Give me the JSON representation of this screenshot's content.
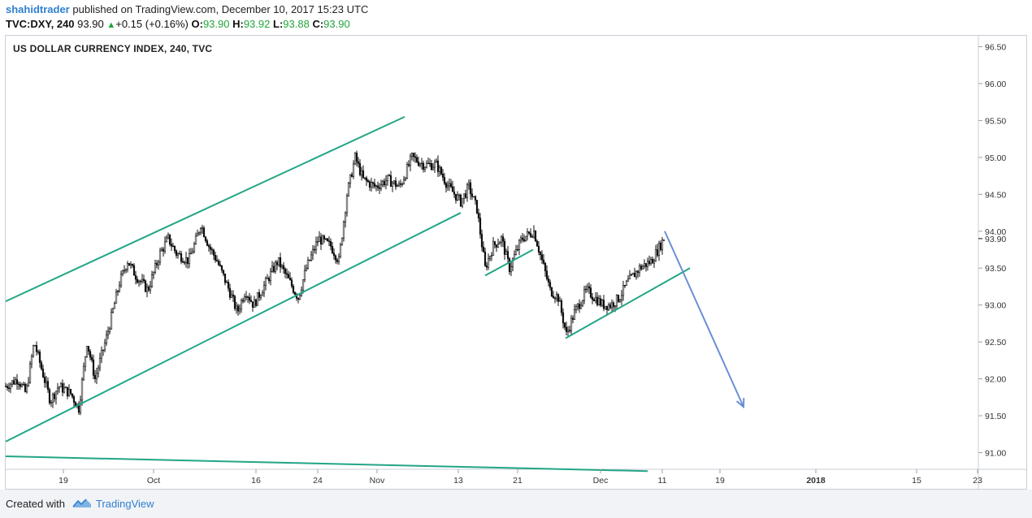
{
  "header": {
    "author": "shahidtrader",
    "published_text": "published on TradingView.com, December 10, 2017 15:23 UTC",
    "symbol": "TVC:DXY, 240",
    "last": "93.90",
    "change": "+0.15 (+0.16%)",
    "open_label": "O:",
    "open": "93.90",
    "high_label": "H:",
    "high": "93.92",
    "low_label": "L:",
    "low": "93.88",
    "close_label": "C:",
    "close": "93.90"
  },
  "chart_data": {
    "type": "candlestick",
    "title": "US DOLLAR CURRENCY INDEX, 240, TVC",
    "y_ticks": [
      "96.50",
      "96.00",
      "95.50",
      "95.00",
      "94.50",
      "94.00",
      "93.50",
      "93.00",
      "92.50",
      "92.00",
      "91.50",
      "91.00"
    ],
    "last_price_label": "93.90",
    "x_ticks": [
      "19",
      "Oct",
      "16",
      "24",
      "Nov",
      "13",
      "21",
      "Dec",
      "11",
      "19",
      "2018",
      "15",
      "23"
    ],
    "ylim": [
      90.75,
      96.75
    ],
    "close_path": [
      [
        0,
        91.9
      ],
      [
        15,
        92.0
      ],
      [
        25,
        91.8
      ],
      [
        35,
        92.5
      ],
      [
        45,
        92.1
      ],
      [
        55,
        91.7
      ],
      [
        65,
        91.9
      ],
      [
        80,
        91.8
      ],
      [
        90,
        91.6
      ],
      [
        100,
        92.5
      ],
      [
        110,
        92.0
      ],
      [
        125,
        92.6
      ],
      [
        140,
        93.3
      ],
      [
        150,
        93.6
      ],
      [
        160,
        93.4
      ],
      [
        175,
        93.2
      ],
      [
        190,
        93.7
      ],
      [
        200,
        93.9
      ],
      [
        210,
        93.7
      ],
      [
        225,
        93.6
      ],
      [
        235,
        93.9
      ],
      [
        240,
        94.1
      ],
      [
        250,
        93.8
      ],
      [
        260,
        93.6
      ],
      [
        275,
        93.2
      ],
      [
        285,
        92.9
      ],
      [
        295,
        93.2
      ],
      [
        305,
        93.0
      ],
      [
        320,
        93.3
      ],
      [
        335,
        93.6
      ],
      [
        350,
        93.3
      ],
      [
        360,
        93.1
      ],
      [
        370,
        93.5
      ],
      [
        385,
        93.9
      ],
      [
        400,
        93.8
      ],
      [
        410,
        93.6
      ],
      [
        420,
        94.5
      ],
      [
        430,
        95.0
      ],
      [
        440,
        94.7
      ],
      [
        455,
        94.6
      ],
      [
        470,
        94.7
      ],
      [
        485,
        94.6
      ],
      [
        500,
        95.0
      ],
      [
        515,
        94.9
      ],
      [
        530,
        94.9
      ],
      [
        545,
        94.6
      ],
      [
        560,
        94.4
      ],
      [
        570,
        94.6
      ],
      [
        580,
        94.3
      ],
      [
        590,
        93.5
      ],
      [
        600,
        93.8
      ],
      [
        610,
        93.9
      ],
      [
        620,
        93.5
      ],
      [
        635,
        93.9
      ],
      [
        650,
        94.0
      ],
      [
        660,
        93.6
      ],
      [
        670,
        93.2
      ],
      [
        680,
        93.1
      ],
      [
        690,
        92.6
      ],
      [
        700,
        92.9
      ],
      [
        715,
        93.2
      ],
      [
        725,
        93.1
      ],
      [
        735,
        93.0
      ],
      [
        745,
        93.0
      ],
      [
        755,
        93.1
      ],
      [
        765,
        93.3
      ],
      [
        780,
        93.5
      ],
      [
        795,
        93.6
      ],
      [
        810,
        93.9
      ]
    ],
    "annotations": [
      {
        "type": "trendline",
        "color": "#22a586",
        "from": [
          0,
          93.05
        ],
        "to": [
          491,
          95.55
        ]
      },
      {
        "type": "trendline",
        "color": "#22a586",
        "from": [
          0,
          91.15
        ],
        "to": [
          560,
          94.25
        ]
      },
      {
        "type": "trendline",
        "color": "#22a586",
        "from": [
          590,
          93.4
        ],
        "to": [
          649,
          93.75
        ]
      },
      {
        "type": "trendline",
        "color": "#22a586",
        "from": [
          689,
          92.55
        ],
        "to": [
          842,
          93.5
        ]
      },
      {
        "type": "trendline",
        "color": "#22a586",
        "from": [
          0,
          90.95
        ],
        "to": [
          790,
          90.75
        ]
      },
      {
        "type": "arrow",
        "color": "#6a8fd6",
        "from": [
          811,
          94.0
        ],
        "to": [
          908,
          91.62
        ]
      }
    ]
  },
  "footer": {
    "created_with": "Created with",
    "brand": "TradingView"
  },
  "colors": {
    "trendline": "#22a586",
    "arrow": "#6a8fd6",
    "up": "#22a43b",
    "link": "#2f7fd1"
  }
}
